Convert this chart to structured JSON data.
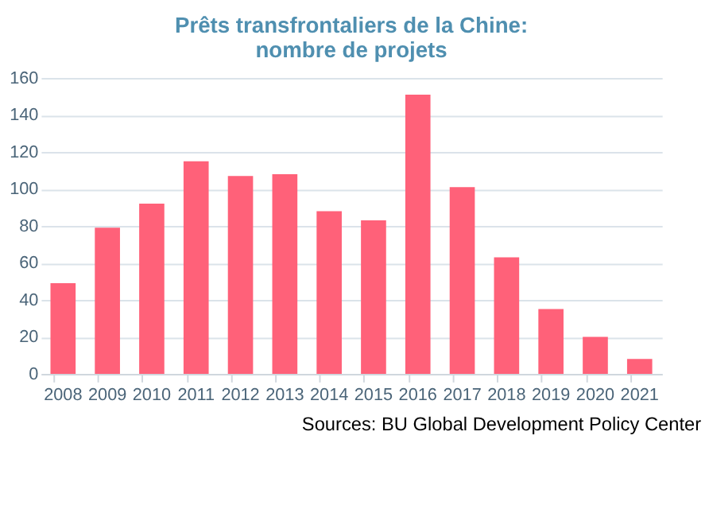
{
  "chart_data": {
    "type": "bar",
    "title": "Prêts transfrontaliers de la Chine:\nnombre de projets",
    "categories": [
      "2008",
      "2009",
      "2010",
      "2011",
      "2012",
      "2013",
      "2014",
      "2015",
      "2016",
      "2017",
      "2018",
      "2019",
      "2020",
      "2021"
    ],
    "values": [
      49,
      79,
      92,
      115,
      107,
      108,
      88,
      83,
      151,
      101,
      63,
      35,
      20,
      8
    ],
    "color": "#ff6179",
    "ylim": [
      0,
      160
    ],
    "yticks": [
      0,
      20,
      40,
      60,
      80,
      100,
      120,
      140,
      160
    ],
    "grid": "y",
    "annotations": [
      "Sources: BU Global Development Policy Center"
    ]
  }
}
